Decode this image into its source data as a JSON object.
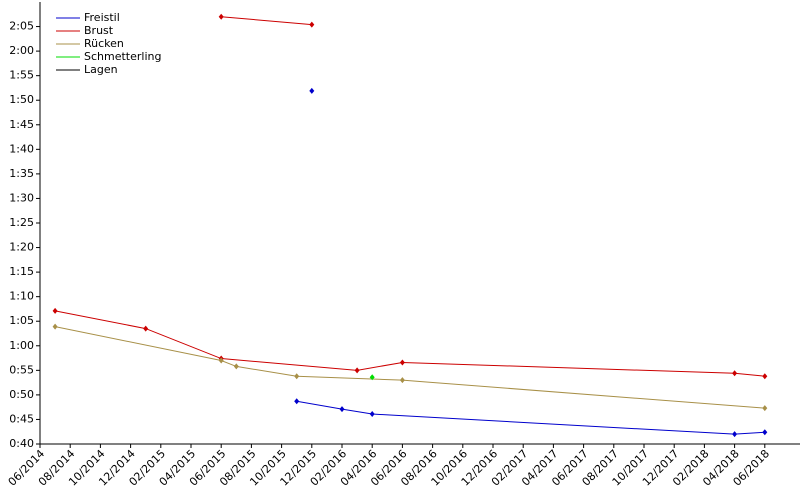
{
  "chart_data": {
    "type": "line",
    "series": [
      {
        "name": "Freistil",
        "color": "#0000cc",
        "x": [
          "2015-11",
          "2016-02",
          "2016-04",
          "2018-04",
          "2018-06",
          null,
          "2015-12"
        ],
        "values": [
          48.7,
          47.1,
          46.1,
          42,
          42.4,
          null,
          111.9
        ]
      },
      {
        "name": "Brust",
        "color": "#cc0000",
        "x": [
          "2014-07",
          "2015-01",
          "2015-06",
          "2016-03",
          "2016-06",
          "2018-04",
          "2018-06",
          null,
          "2015-06",
          "2015-12"
        ],
        "values": [
          67.1,
          63.5,
          57.4,
          55,
          56.6,
          54.4,
          53.8,
          null,
          127,
          125.4
        ]
      },
      {
        "name": "Rücken",
        "color": "#a89048",
        "x": [
          "2014-07",
          "2015-06",
          "2015-07",
          "2015-11",
          "2016-06",
          "2018-06"
        ],
        "values": [
          63.9,
          57,
          55.8,
          53.8,
          53,
          47.3
        ]
      },
      {
        "name": "Schmetterling",
        "color": "#00dd00",
        "x": [
          "2016-04"
        ],
        "values": [
          53.6
        ]
      },
      {
        "name": "Lagen",
        "color": "#000000",
        "x": [],
        "values": []
      }
    ],
    "xlim": [
      "2014-06",
      "2018-08"
    ],
    "xticks": [
      {
        "value": "2014-06",
        "label": "06/2014"
      },
      {
        "value": "2014-08",
        "label": "08/2014"
      },
      {
        "value": "2014-10",
        "label": "10/2014"
      },
      {
        "value": "2014-12",
        "label": "12/2014"
      },
      {
        "value": "2015-02",
        "label": "02/2015"
      },
      {
        "value": "2015-04",
        "label": "04/2015"
      },
      {
        "value": "2015-06",
        "label": "06/2015"
      },
      {
        "value": "2015-08",
        "label": "08/2015"
      },
      {
        "value": "2015-10",
        "label": "10/2015"
      },
      {
        "value": "2015-12",
        "label": "12/2015"
      },
      {
        "value": "2016-02",
        "label": "02/2016"
      },
      {
        "value": "2016-04",
        "label": "04/2016"
      },
      {
        "value": "2016-06",
        "label": "06/2016"
      },
      {
        "value": "2016-08",
        "label": "08/2016"
      },
      {
        "value": "2016-10",
        "label": "10/2016"
      },
      {
        "value": "2016-12",
        "label": "12/2016"
      },
      {
        "value": "2017-02",
        "label": "02/2017"
      },
      {
        "value": "2017-04",
        "label": "04/2017"
      },
      {
        "value": "2017-06",
        "label": "06/2017"
      },
      {
        "value": "2017-08",
        "label": "08/2017"
      },
      {
        "value": "2017-10",
        "label": "10/2017"
      },
      {
        "value": "2017-12",
        "label": "12/2017"
      },
      {
        "value": "2018-02",
        "label": "02/2018"
      },
      {
        "value": "2018-04",
        "label": "04/2018"
      },
      {
        "value": "2018-06",
        "label": "06/2018"
      }
    ],
    "ylim": [
      40,
      130
    ],
    "yticks": [
      {
        "value": 40,
        "label": "0:40"
      },
      {
        "value": 45,
        "label": "0:45"
      },
      {
        "value": 50,
        "label": "0:50"
      },
      {
        "value": 55,
        "label": "0:55"
      },
      {
        "value": 60,
        "label": "1:00"
      },
      {
        "value": 65,
        "label": "1:05"
      },
      {
        "value": 70,
        "label": "1:10"
      },
      {
        "value": 75,
        "label": "1:15"
      },
      {
        "value": 80,
        "label": "1:20"
      },
      {
        "value": 85,
        "label": "1:25"
      },
      {
        "value": 90,
        "label": "1:30"
      },
      {
        "value": 95,
        "label": "1:35"
      },
      {
        "value": 100,
        "label": "1:40"
      },
      {
        "value": 105,
        "label": "1:45"
      },
      {
        "value": 110,
        "label": "1:50"
      },
      {
        "value": 115,
        "label": "1:55"
      },
      {
        "value": 120,
        "label": "2:00"
      },
      {
        "value": 125,
        "label": "2:05"
      }
    ],
    "grid": false,
    "legend": "top-left"
  }
}
